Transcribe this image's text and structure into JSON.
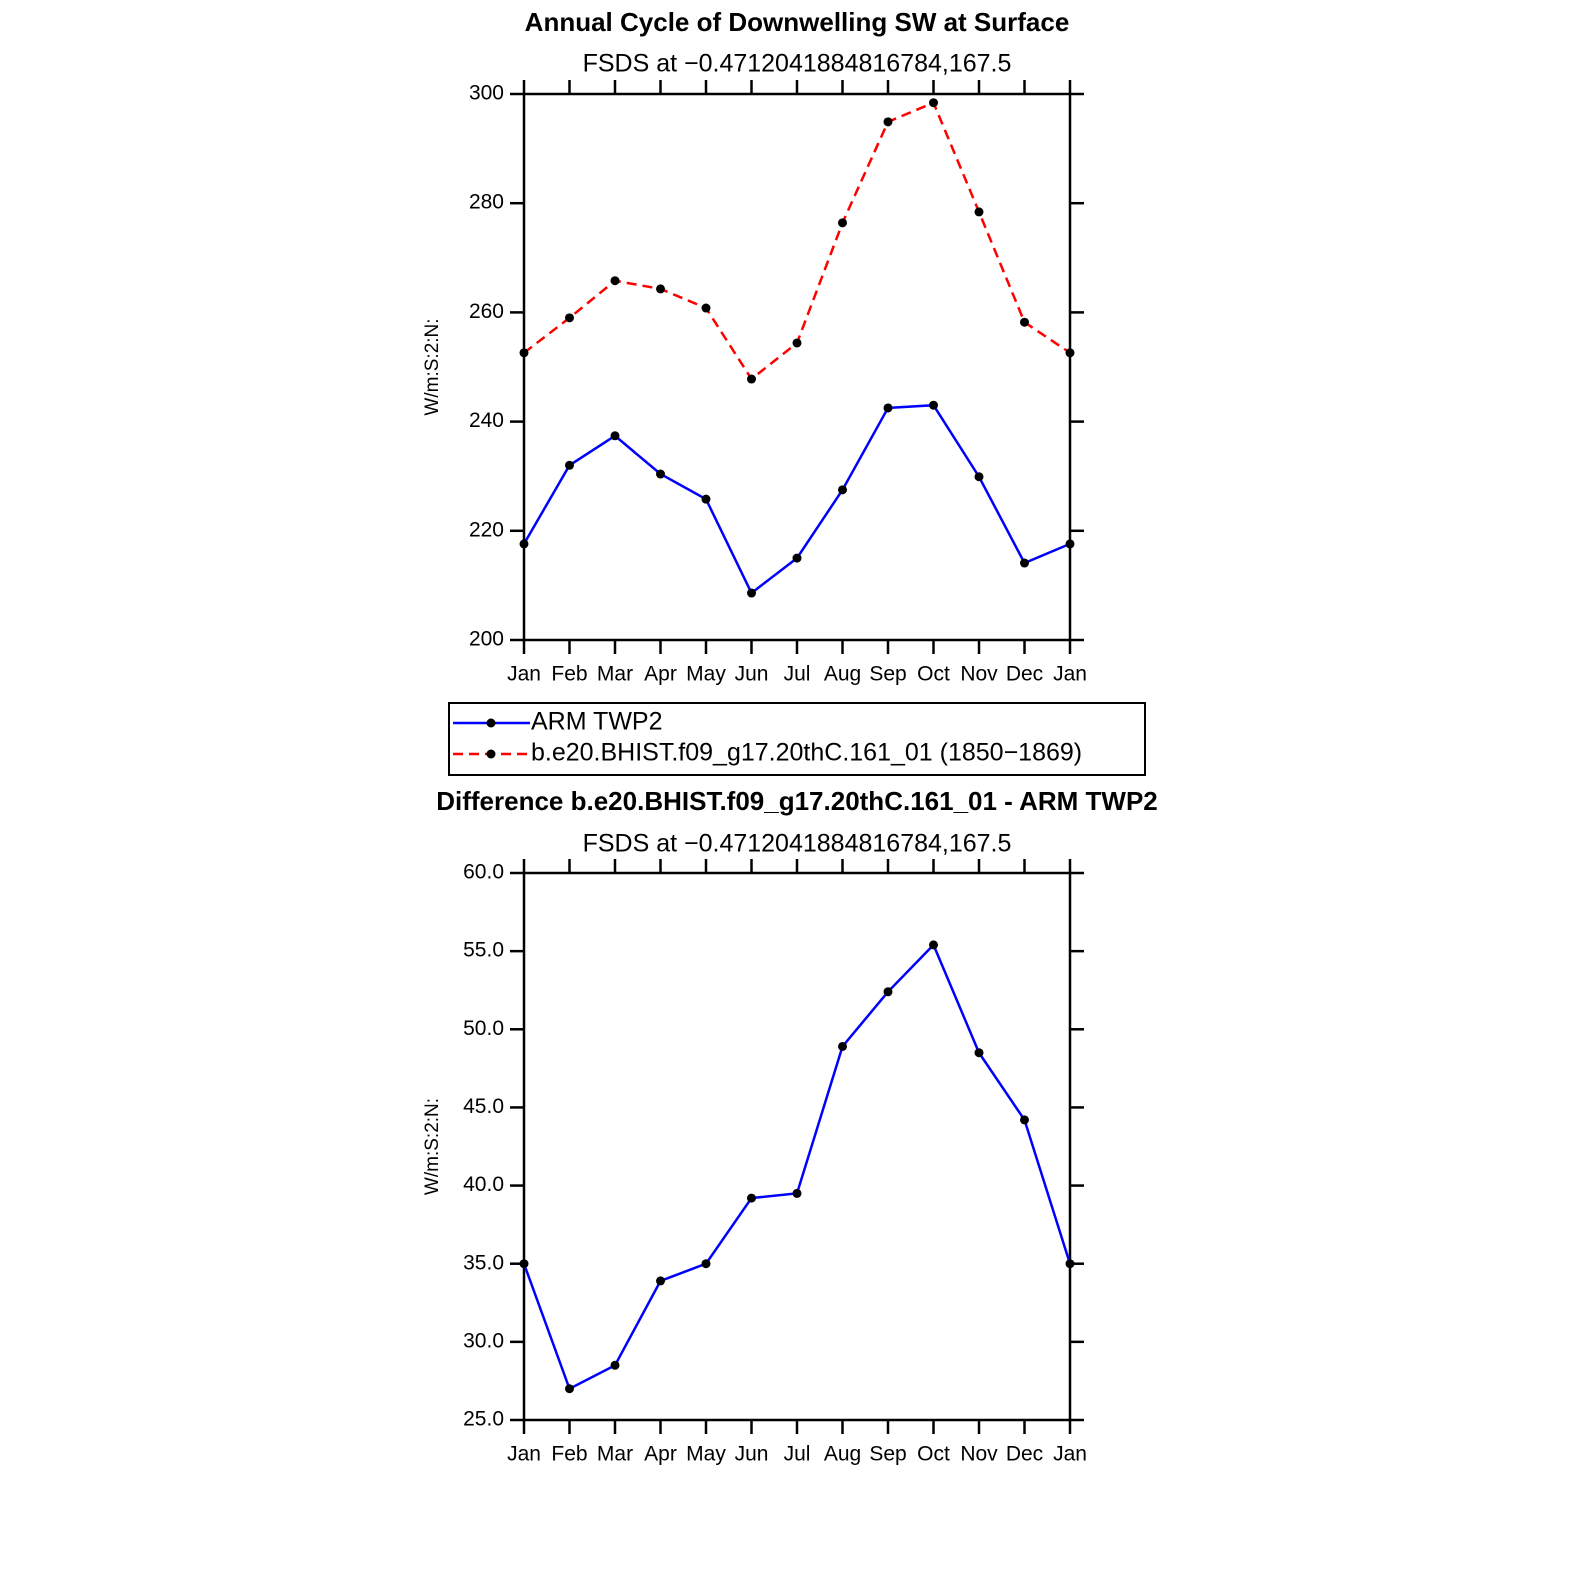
{
  "chart_data": [
    {
      "type": "line",
      "title": "Annual Cycle of Downwelling SW at Surface",
      "subtitle": "FSDS at −0.4712041884816784,167.5",
      "y_label": "W/m:S:2:N:",
      "categories": [
        "Jan",
        "Feb",
        "Mar",
        "Apr",
        "May",
        "Jun",
        "Jul",
        "Aug",
        "Sep",
        "Oct",
        "Nov",
        "Dec",
        "Jan"
      ],
      "series": [
        {
          "name": "ARM TWP2",
          "color": "#0000ff",
          "line_style": "solid",
          "values": [
            217.6,
            232.0,
            237.4,
            230.4,
            225.8,
            208.6,
            215.0,
            227.5,
            242.5,
            243.0,
            229.9,
            214.1,
            217.6
          ]
        },
        {
          "name": "b.e20.BHIST.f09_g17.20thC.161_01 (1850−1869)",
          "color": "#ff0000",
          "line_style": "dashed",
          "values": [
            252.6,
            259.0,
            265.8,
            264.3,
            260.8,
            247.8,
            254.4,
            276.4,
            294.9,
            298.4,
            278.4,
            258.2,
            252.6
          ]
        }
      ],
      "ylim": [
        200,
        300
      ],
      "yticks": [
        200,
        220,
        240,
        260,
        280,
        300
      ],
      "marker_color": "#000000",
      "legend": "bottom"
    },
    {
      "type": "line",
      "title": "Difference b.e20.BHIST.f09_g17.20thC.161_01 - ARM TWP2",
      "subtitle": "FSDS at −0.4712041884816784,167.5",
      "y_label": "W/m:S:2:N:",
      "categories": [
        "Jan",
        "Feb",
        "Mar",
        "Apr",
        "May",
        "Jun",
        "Jul",
        "Aug",
        "Sep",
        "Oct",
        "Nov",
        "Dec",
        "Jan"
      ],
      "series": [
        {
          "color": "#0000ff",
          "line_style": "solid",
          "values": [
            35.0,
            27.0,
            28.5,
            33.9,
            35.0,
            39.2,
            39.5,
            48.9,
            52.4,
            55.4,
            48.5,
            44.2,
            35.0
          ]
        }
      ],
      "ylim": [
        25,
        60
      ],
      "yticks": [
        {
          "value": 25,
          "label": "25.0"
        },
        {
          "value": 30,
          "label": "30.0"
        },
        {
          "value": 35,
          "label": "35.0"
        },
        {
          "value": 40,
          "label": "40.0"
        },
        {
          "value": 45,
          "label": "45.0"
        },
        {
          "value": 50,
          "label": "50.0"
        },
        {
          "value": 55,
          "label": "55.0"
        },
        {
          "value": 60,
          "label": "60.0"
        }
      ],
      "marker_color": "#000000"
    }
  ]
}
